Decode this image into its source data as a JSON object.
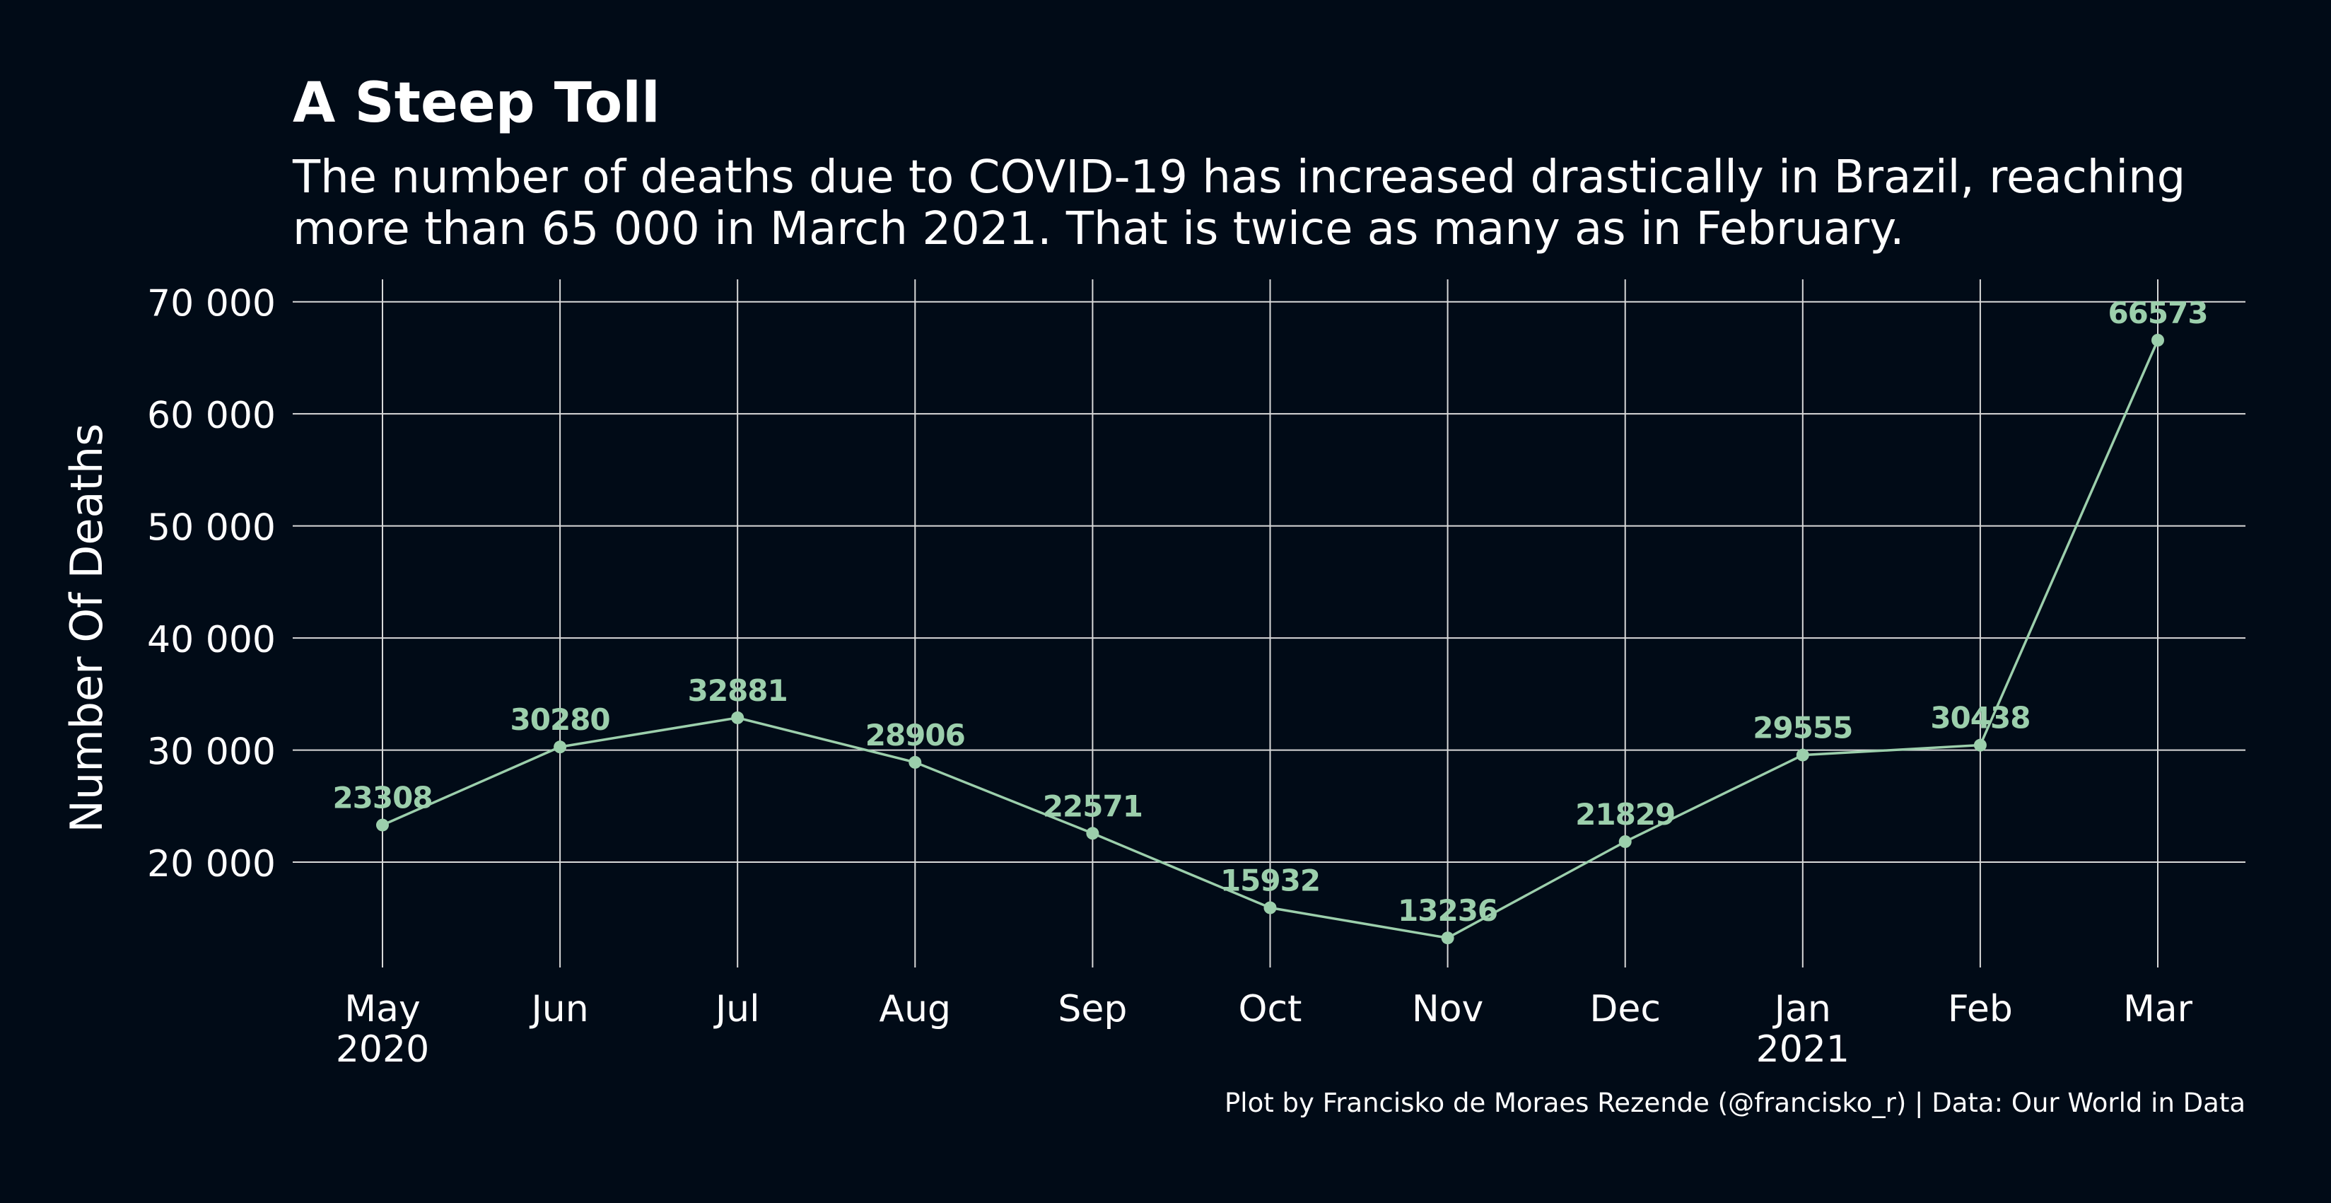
{
  "title": "A Steep Toll",
  "subtitle_lines": [
    "The number of deaths due to COVID-19 has increased drastically in Brazil, reaching",
    "more than 65 000 in March 2021. That is twice as many as in February."
  ],
  "caption": "Plot by Francisko de Moraes Rezende (@francisko_r) | Data: Our World in Data",
  "colors": {
    "background": "#010b17",
    "text": "#ffffff",
    "grid": "#d9d9d9",
    "series": "#9ccfac"
  },
  "chart_data": {
    "type": "line",
    "xlabel": "",
    "ylabel": "Number Of Deaths",
    "x": [
      "May 2020",
      "Jun 2020",
      "Jul 2020",
      "Aug 2020",
      "Sep 2020",
      "Oct 2020",
      "Nov 2020",
      "Dec 2020",
      "Jan 2021",
      "Feb 2021",
      "Mar 2021"
    ],
    "x_tick_labels": [
      [
        "May",
        "2020"
      ],
      [
        "Jun"
      ],
      [
        "Jul"
      ],
      [
        "Aug"
      ],
      [
        "Sep"
      ],
      [
        "Oct"
      ],
      [
        "Nov"
      ],
      [
        "Dec"
      ],
      [
        "Jan",
        "2021"
      ],
      [
        "Feb"
      ],
      [
        "Mar"
      ]
    ],
    "values": [
      23308,
      30280,
      32881,
      28906,
      22571,
      15932,
      13236,
      21829,
      29555,
      30438,
      66573
    ],
    "data_labels": [
      "23308",
      "30280",
      "32881",
      "28906",
      "22571",
      "15932",
      "13236",
      "21829",
      "29555",
      "30438",
      "66573"
    ],
    "y_ticks": [
      20000,
      30000,
      40000,
      50000,
      60000,
      70000
    ],
    "y_tick_labels": [
      "20 000",
      "30 000",
      "40 000",
      "50 000",
      "60 000",
      "70 000"
    ],
    "ylim": [
      10600,
      72000
    ],
    "grid": true,
    "legend": "none"
  }
}
